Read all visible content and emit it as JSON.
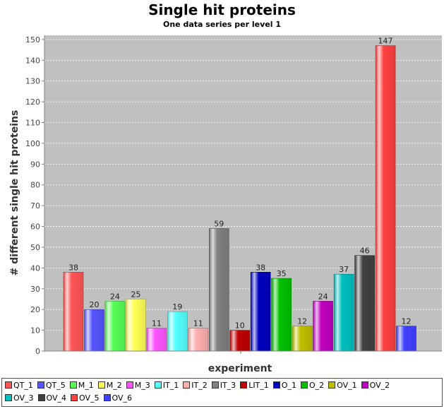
{
  "chart_data": {
    "type": "bar",
    "title": "Single hit proteins",
    "subtitle": "One data series per level 1",
    "xlabel": "experiment",
    "ylabel": "# different single hit proteins",
    "ylim": [
      0,
      152
    ],
    "yticks": [
      0,
      10,
      20,
      30,
      40,
      50,
      60,
      70,
      80,
      90,
      100,
      110,
      120,
      130,
      140,
      150
    ],
    "grid": true,
    "legend_position": "bottom",
    "series": [
      {
        "name": "QT_1",
        "value": 38,
        "color": "#ff5555"
      },
      {
        "name": "QT_5",
        "value": 20,
        "color": "#5555ff"
      },
      {
        "name": "M_1",
        "value": 24,
        "color": "#55ff55"
      },
      {
        "name": "M_2",
        "value": 25,
        "color": "#ffff55"
      },
      {
        "name": "M_3",
        "value": 11,
        "color": "#ff55ff"
      },
      {
        "name": "IT_1",
        "value": 19,
        "color": "#55ffff"
      },
      {
        "name": "IT_2",
        "value": 11,
        "color": "#ffafaf"
      },
      {
        "name": "IT_3",
        "value": 59,
        "color": "#808080"
      },
      {
        "name": "LIT_1",
        "value": 10,
        "color": "#c00000"
      },
      {
        "name": "O_1",
        "value": 38,
        "color": "#0000c0"
      },
      {
        "name": "O_2",
        "value": 35,
        "color": "#00c000"
      },
      {
        "name": "OV_1",
        "value": 12,
        "color": "#c0c000"
      },
      {
        "name": "OV_2",
        "value": 24,
        "color": "#c000c0"
      },
      {
        "name": "OV_3",
        "value": 37,
        "color": "#00c0c0"
      },
      {
        "name": "OV_4",
        "value": 46,
        "color": "#404040"
      },
      {
        "name": "OV_5",
        "value": 147,
        "color": "#ff4040"
      },
      {
        "name": "OV_6",
        "value": 12,
        "color": "#4040ff"
      }
    ]
  }
}
